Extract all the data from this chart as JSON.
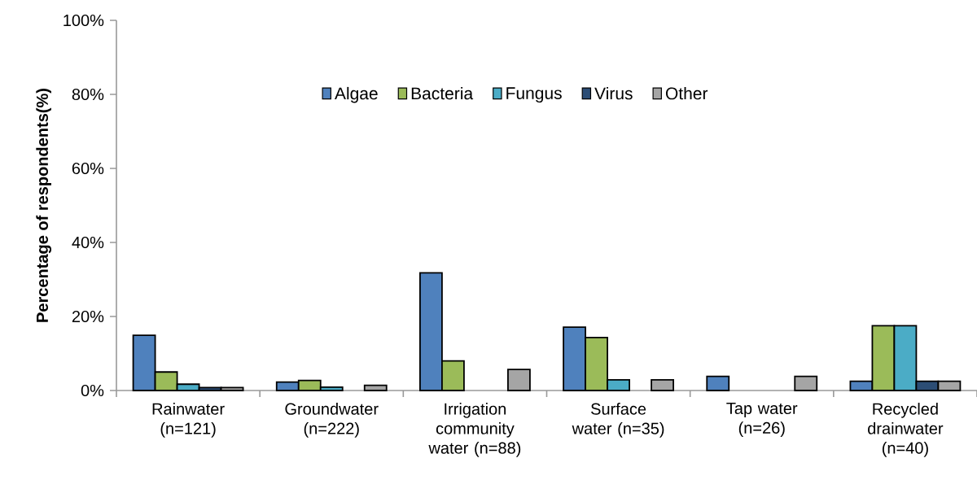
{
  "chart_data": {
    "type": "bar",
    "ylabel": "Percentage of respondents(%)",
    "categories": [
      "Rainwater (n=121)",
      "Groundwater (n=222)",
      "Irrigation community water (n=88)",
      "Surface water (n=35)",
      "Tap water (n=26)",
      "Recycled drainwater (n=40)"
    ],
    "series": [
      {
        "name": "Algae",
        "color": "#4f81bd",
        "values": [
          14.9,
          2.3,
          31.8,
          17.1,
          3.8,
          2.5
        ]
      },
      {
        "name": "Bacteria",
        "color": "#9bbb59",
        "values": [
          5.0,
          2.7,
          8.0,
          14.3,
          null,
          17.5
        ]
      },
      {
        "name": "Fungus",
        "color": "#4bacc6",
        "values": [
          1.7,
          0.9,
          null,
          2.9,
          null,
          17.5
        ]
      },
      {
        "name": "Virus",
        "color": "#2c4d75",
        "values": [
          0.8,
          null,
          null,
          null,
          null,
          2.5
        ]
      },
      {
        "name": "Other",
        "color": "#a5a5a5",
        "values": [
          0.8,
          1.4,
          5.7,
          2.9,
          3.8,
          2.5
        ]
      }
    ],
    "ylim": [
      0,
      100
    ],
    "yticks": [
      {
        "value": 0,
        "label": "0%"
      },
      {
        "value": 20,
        "label": "20%"
      },
      {
        "value": 40,
        "label": "40%"
      },
      {
        "value": 60,
        "label": "60%"
      },
      {
        "value": 80,
        "label": "80%"
      },
      {
        "value": 100,
        "label": "100%"
      }
    ],
    "legend": "top",
    "grid": false
  }
}
